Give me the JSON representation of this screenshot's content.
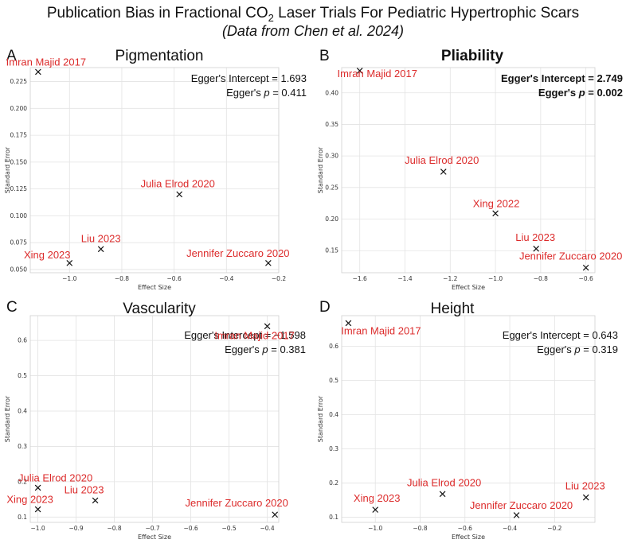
{
  "figure": {
    "title_main": "Publication Bias in Fractional CO",
    "title_sub": "2",
    "title_end": " Laser Trials For Pediatric Hypertrophic Scars",
    "subtitle": "(Data from Chen et al. 2024)"
  },
  "chart_data": [
    {
      "type": "scatter",
      "letter": "A",
      "title": "Pigmentation",
      "title_bold": false,
      "xlabel": "Effect Size",
      "ylabel": "Standard Error",
      "xlim": [
        -1.15,
        -0.2
      ],
      "ylim": [
        0.047,
        0.238
      ],
      "xticks": [
        -1.0,
        -0.8,
        -0.6,
        -0.4,
        -0.2
      ],
      "xtick_labels": [
        "−1.0",
        "−0.8",
        "−0.6",
        "−0.4",
        "−0.2"
      ],
      "yticks": [
        0.05,
        0.075,
        0.1,
        0.125,
        0.15,
        0.175,
        0.2,
        0.225
      ],
      "ytick_labels": [
        "0.050",
        "0.075",
        "0.100",
        "0.125",
        "0.150",
        "0.175",
        "0.200",
        "0.225"
      ],
      "egger_intercept": "Egger's Intercept = 1.693",
      "egger_p_prefix": "Egger's ",
      "egger_p_var": "p",
      "egger_p_value": " = 0.411",
      "egger_bold": false,
      "points": [
        {
          "name": "Imran Majid 2017",
          "x": -1.12,
          "y": 0.234
        },
        {
          "name": "Julia Elrod 2020",
          "x": -0.58,
          "y": 0.12
        },
        {
          "name": "Liu 2023",
          "x": -0.88,
          "y": 0.069
        },
        {
          "name": "Xing 2023",
          "x": -1.0,
          "y": 0.056
        },
        {
          "name": "Jennifer Zuccaro 2020",
          "x": -0.24,
          "y": 0.056
        }
      ]
    },
    {
      "type": "scatter",
      "letter": "B",
      "title": "Pliability",
      "title_bold": true,
      "xlabel": "Effect Size",
      "ylabel": "Standard Error",
      "xlim": [
        -1.68,
        -0.56
      ],
      "ylim": [
        0.115,
        0.44
      ],
      "xticks": [
        -1.6,
        -1.4,
        -1.2,
        -1.0,
        -0.8,
        -0.6
      ],
      "xtick_labels": [
        "−1.6",
        "−1.4",
        "−1.2",
        "−1.0",
        "−0.8",
        "−0.6"
      ],
      "yticks": [
        0.15,
        0.2,
        0.25,
        0.3,
        0.35,
        0.4
      ],
      "ytick_labels": [
        "0.15",
        "0.20",
        "0.25",
        "0.30",
        "0.35",
        "0.40"
      ],
      "egger_intercept": "Egger's Intercept = 2.749",
      "egger_p_prefix": "Egger's ",
      "egger_p_var": "p",
      "egger_p_value": " = 0.002",
      "egger_bold": true,
      "points": [
        {
          "name": "Imran Majid 2017",
          "x": -1.6,
          "y": 0.435
        },
        {
          "name": "Julia Elrod 2020",
          "x": -1.23,
          "y": 0.275
        },
        {
          "name": "Xing 2022",
          "x": -1.0,
          "y": 0.209
        },
        {
          "name": "Liu 2023",
          "x": -0.82,
          "y": 0.153
        },
        {
          "name": "Jennifer Zuccaro 2020",
          "x": -0.6,
          "y": 0.123
        }
      ]
    },
    {
      "type": "scatter",
      "letter": "C",
      "title": "Vascularity",
      "title_bold": false,
      "xlabel": "Effect Size",
      "ylabel": "Standard Error",
      "xlim": [
        -1.02,
        -0.37
      ],
      "ylim": [
        0.085,
        0.67
      ],
      "xticks": [
        -1.0,
        -0.9,
        -0.8,
        -0.7,
        -0.6,
        -0.5,
        -0.4
      ],
      "xtick_labels": [
        "−1.0",
        "−0.9",
        "−0.8",
        "−0.7",
        "−0.6",
        "−0.5",
        "−0.4"
      ],
      "yticks": [
        0.1,
        0.2,
        0.3,
        0.4,
        0.5,
        0.6
      ],
      "ytick_labels": [
        "0.1",
        "0.2",
        "0.3",
        "0.4",
        "0.5",
        "0.6"
      ],
      "egger_intercept": "Egger's Intercept = −1.598",
      "egger_p_prefix": "Egger's ",
      "egger_p_var": "p",
      "egger_p_value": " = 0.381",
      "egger_bold": false,
      "points": [
        {
          "name": "Imran Majid 2017",
          "x": -0.4,
          "y": 0.64
        },
        {
          "name": "Julia Elrod 2020",
          "x": -1.0,
          "y": 0.183
        },
        {
          "name": "Liu 2023",
          "x": -0.85,
          "y": 0.147
        },
        {
          "name": "Xing 2023",
          "x": -1.0,
          "y": 0.122
        },
        {
          "name": "Jennifer Zuccaro 2020",
          "x": -0.38,
          "y": 0.107
        }
      ]
    },
    {
      "type": "scatter",
      "letter": "D",
      "title": "Height",
      "title_bold": false,
      "xlabel": "Effect Size",
      "ylabel": "Standard Error",
      "xlim": [
        -1.15,
        -0.02
      ],
      "ylim": [
        0.085,
        0.69
      ],
      "xticks": [
        -1.0,
        -0.8,
        -0.6,
        -0.4,
        -0.2
      ],
      "xtick_labels": [
        "−1.0",
        "−0.8",
        "−0.6",
        "−0.4",
        "−0.2"
      ],
      "yticks": [
        0.1,
        0.2,
        0.3,
        0.4,
        0.5,
        0.6
      ],
      "ytick_labels": [
        "0.1",
        "0.2",
        "0.3",
        "0.4",
        "0.5",
        "0.6"
      ],
      "egger_intercept": "Egger's Intercept = 0.643",
      "egger_p_prefix": "Egger's ",
      "egger_p_var": "p",
      "egger_p_value": " = 0.319",
      "egger_bold": false,
      "points": [
        {
          "name": "Imran Majid 2017",
          "x": -1.12,
          "y": 0.668
        },
        {
          "name": "Julia Elrod 2020",
          "x": -0.7,
          "y": 0.168
        },
        {
          "name": "Liu 2023",
          "x": -0.06,
          "y": 0.158
        },
        {
          "name": "Xing 2023",
          "x": -1.0,
          "y": 0.122
        },
        {
          "name": "Jennifer Zuccaro 2020",
          "x": -0.37,
          "y": 0.106
        }
      ]
    }
  ]
}
